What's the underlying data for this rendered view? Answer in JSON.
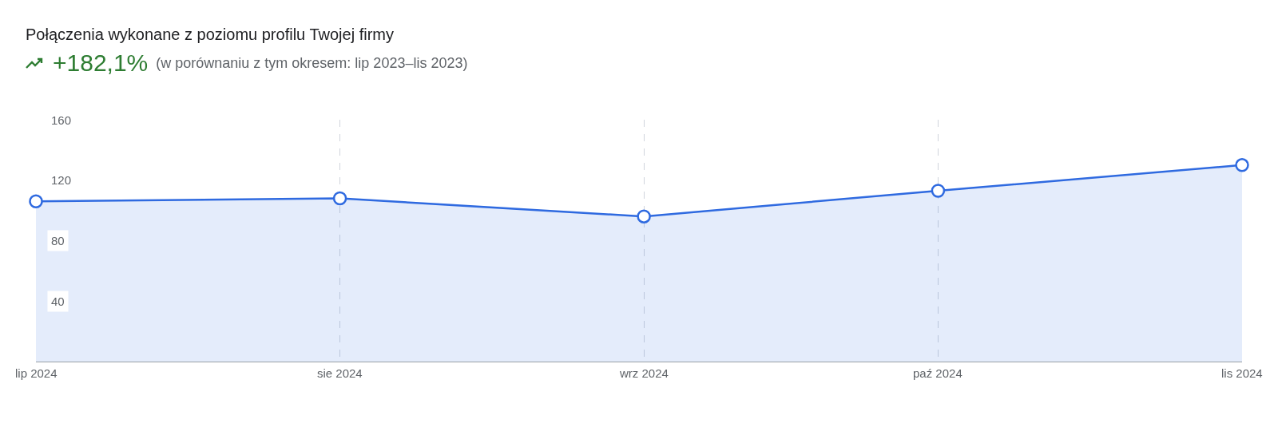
{
  "chart_data": {
    "type": "area",
    "title": "Połączenia wykonane z poziomu profilu Twojej firmy",
    "annotations": [
      "+182,1%",
      "(w porównaniu z tym okresem: lip 2023–lis 2023)"
    ],
    "x": [
      "2024-07-01",
      "2024-08-01",
      "2024-09-01",
      "2024-10-01",
      "2024-11-01"
    ],
    "series": [
      {
        "color": "#2f6ae0",
        "values": [
          106,
          108,
          96,
          113,
          130
        ]
      }
    ],
    "xlim": [
      "2024-07-01",
      "2024-11-01"
    ],
    "xticks": [
      {
        "value": "2024-07-01",
        "label": "lip 2024"
      },
      {
        "value": "2024-08-01",
        "label": "sie 2024"
      },
      {
        "value": "2024-09-01",
        "label": "wrz 2024"
      },
      {
        "value": "2024-10-01",
        "label": "paź 2024"
      },
      {
        "value": "2024-11-01",
        "label": "lis 2024"
      }
    ],
    "ylim": [
      0,
      160
    ],
    "yticks": [
      40,
      80,
      120,
      160
    ],
    "grid": "x",
    "marker": "circle",
    "line_style": "solid"
  }
}
